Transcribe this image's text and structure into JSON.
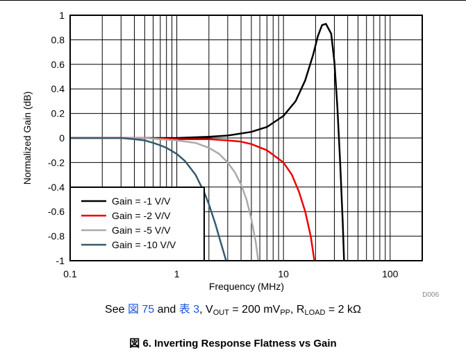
{
  "chart_data": {
    "type": "line",
    "xlabel": "Frequency (MHz)",
    "ylabel": "Normalized Gain (dB)",
    "xscale": "log",
    "xlim": [
      0.1,
      200
    ],
    "ylim": [
      -1,
      1
    ],
    "x_ticks": [
      0.1,
      1,
      10,
      100
    ],
    "x_tick_labels": [
      "0.1",
      "1",
      "10",
      "100"
    ],
    "y_ticks": [
      1,
      0.8,
      0.6,
      0.4,
      0.2,
      0,
      -0.2,
      -0.4,
      -0.6,
      -0.8,
      -1
    ],
    "y_tick_labels": [
      "1",
      "0.8",
      "0.6",
      "0.4",
      "0.2",
      "0",
      "-0.2",
      "-0.4",
      "-0.6",
      "-0.8",
      "-1"
    ],
    "grid": true,
    "legend_position": "bottom-left",
    "series": [
      {
        "name": "Gain = -1 V/V",
        "color": "#000000",
        "x": [
          0.1,
          0.2,
          0.5,
          1,
          2,
          3,
          5,
          7,
          10,
          13,
          16,
          19,
          21,
          23,
          25,
          28,
          30,
          32,
          34,
          36,
          37
        ],
        "y": [
          0.0,
          0.0,
          0.0,
          0.0,
          0.01,
          0.02,
          0.05,
          0.09,
          0.18,
          0.3,
          0.47,
          0.68,
          0.83,
          0.92,
          0.93,
          0.85,
          0.62,
          0.25,
          -0.2,
          -0.7,
          -1.0
        ]
      },
      {
        "name": "Gain = -2 V/V",
        "color": "#ee0000",
        "x": [
          0.1,
          0.3,
          0.5,
          1,
          2,
          3,
          4,
          5,
          7,
          10,
          12,
          14,
          16,
          18,
          19.5
        ],
        "y": [
          0.0,
          0.0,
          0.0,
          -0.01,
          -0.01,
          -0.02,
          -0.03,
          -0.05,
          -0.1,
          -0.2,
          -0.3,
          -0.44,
          -0.6,
          -0.8,
          -1.0
        ]
      },
      {
        "name": "Gain = -5 V/V",
        "color": "#aaaaaa",
        "x": [
          0.1,
          0.3,
          0.5,
          0.7,
          1,
          1.5,
          2,
          2.5,
          3,
          3.5,
          4,
          4.5,
          5,
          5.5,
          5.8
        ],
        "y": [
          0.0,
          0.0,
          0.0,
          -0.01,
          -0.02,
          -0.04,
          -0.08,
          -0.13,
          -0.2,
          -0.28,
          -0.38,
          -0.5,
          -0.66,
          -0.85,
          -1.0
        ]
      },
      {
        "name": "Gain = -10 V/V",
        "color": "#33596e",
        "x": [
          0.1,
          0.2,
          0.3,
          0.4,
          0.5,
          0.6,
          0.7,
          0.8,
          1,
          1.2,
          1.5,
          1.8,
          2,
          2.3,
          2.6,
          2.9
        ],
        "y": [
          0.0,
          0.0,
          0.0,
          -0.01,
          -0.02,
          -0.04,
          -0.06,
          -0.08,
          -0.13,
          -0.19,
          -0.3,
          -0.44,
          -0.54,
          -0.7,
          -0.86,
          -1.0
        ]
      }
    ],
    "annotation": "D006"
  },
  "caption": {
    "see_label": "See ",
    "ref1": "図 75",
    "and_label": " and ",
    "ref2": "表 3",
    "vout_prefix": ", V",
    "vout_sub": "OUT",
    "vout_value": " = 200 mV",
    "vout_unit_sub": "PP",
    "rload_prefix": ", R",
    "rload_sub": "LOAD",
    "rload_value": " = 2 kΩ"
  },
  "figure_title": "図 6. Inverting Response Flatness vs Gain"
}
